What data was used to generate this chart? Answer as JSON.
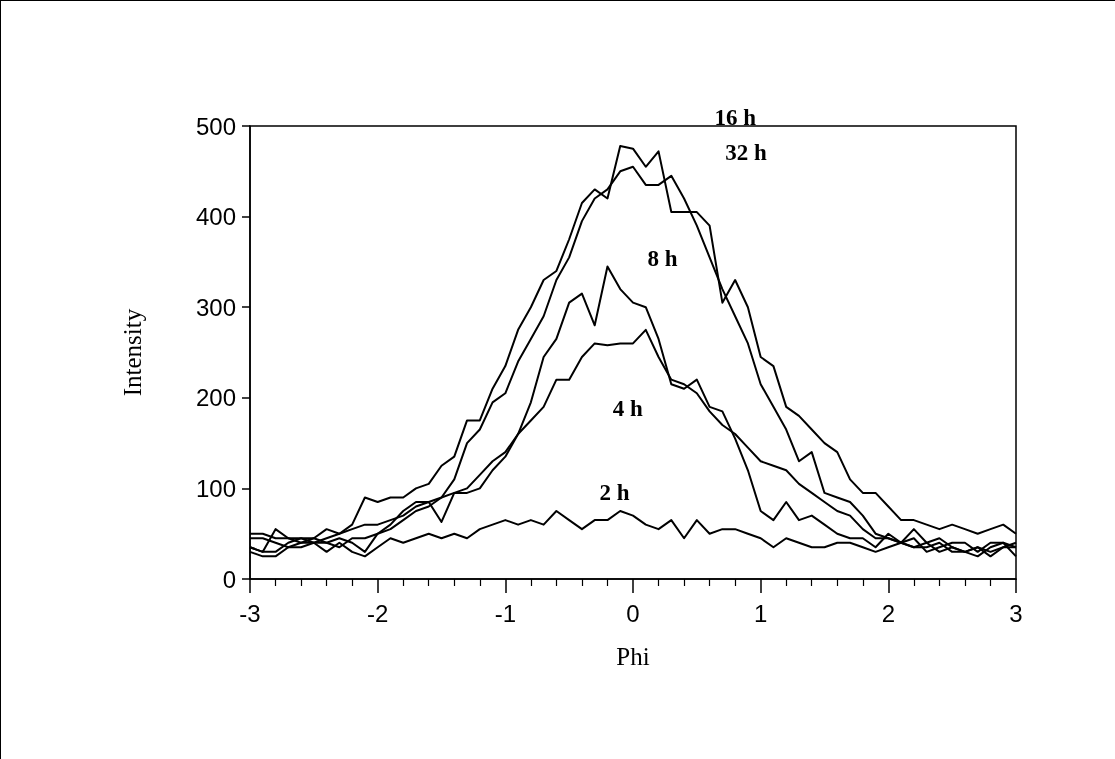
{
  "chart_data": {
    "type": "line",
    "xlabel": "Phi",
    "ylabel": "Intensity",
    "x": [
      -3,
      -2.9,
      -2.8,
      -2.7,
      -2.6,
      -2.5,
      -2.4,
      -2.3,
      -2.2,
      -2.1,
      -2,
      -1.9,
      -1.8,
      -1.7,
      -1.6,
      -1.5,
      -1.4,
      -1.3,
      -1.2,
      -1.1,
      -1,
      -0.9,
      -0.8,
      -0.7,
      -0.6,
      -0.5,
      -0.4,
      -0.3,
      -0.2,
      -0.1,
      0,
      0.1,
      0.2,
      0.3,
      0.4,
      0.5,
      0.6,
      0.7,
      0.8,
      0.9,
      1,
      1.1,
      1.2,
      1.3,
      1.4,
      1.5,
      1.6,
      1.7,
      1.8,
      1.9,
      2,
      2.1,
      2.2,
      2.3,
      2.4,
      2.5,
      2.6,
      2.7,
      2.8,
      2.9,
      3
    ],
    "series": [
      {
        "name": "16 h",
        "color": "#000000",
        "values": [
          30,
          25,
          25,
          35,
          35,
          40,
          45,
          50,
          60,
          90,
          85,
          90,
          90,
          100,
          105,
          125,
          135,
          175,
          175,
          210,
          235,
          275,
          300,
          330,
          340,
          375,
          415,
          430,
          420,
          478,
          475,
          455,
          472,
          405,
          405,
          405,
          390,
          305,
          330,
          300,
          245,
          235,
          190,
          180,
          165,
          150,
          140,
          110,
          95,
          95,
          80,
          65,
          65,
          60,
          55,
          60,
          55,
          50,
          55,
          60,
          50
        ]
      },
      {
        "name": "32 h",
        "color": "#000000",
        "values": [
          45,
          45,
          40,
          35,
          40,
          40,
          40,
          45,
          40,
          30,
          50,
          55,
          65,
          75,
          80,
          90,
          110,
          150,
          165,
          195,
          205,
          240,
          265,
          290,
          330,
          355,
          395,
          420,
          430,
          450,
          455,
          435,
          435,
          445,
          420,
          390,
          355,
          320,
          290,
          260,
          215,
          190,
          165,
          130,
          140,
          95,
          90,
          85,
          70,
          50,
          45,
          40,
          55,
          40,
          30,
          35,
          30,
          25,
          35,
          40,
          35
        ]
      },
      {
        "name": "8 h",
        "color": "#000000",
        "values": [
          35,
          30,
          55,
          45,
          40,
          45,
          55,
          50,
          55,
          60,
          60,
          65,
          70,
          80,
          85,
          63,
          95,
          95,
          100,
          120,
          135,
          160,
          195,
          245,
          265,
          305,
          315,
          280,
          345,
          320,
          305,
          300,
          265,
          215,
          210,
          220,
          190,
          185,
          155,
          120,
          75,
          65,
          85,
          65,
          70,
          60,
          50,
          45,
          45,
          35,
          50,
          40,
          45,
          30,
          35,
          40,
          40,
          30,
          40,
          40,
          25
        ]
      },
      {
        "name": "4 h",
        "color": "#000000",
        "values": [
          35,
          30,
          30,
          40,
          45,
          45,
          40,
          35,
          45,
          45,
          50,
          60,
          75,
          85,
          85,
          90,
          95,
          100,
          115,
          130,
          140,
          160,
          175,
          190,
          220,
          220,
          245,
          260,
          258,
          260,
          260,
          275,
          245,
          220,
          215,
          205,
          185,
          170,
          160,
          145,
          130,
          125,
          120,
          105,
          95,
          85,
          75,
          70,
          55,
          45,
          45,
          40,
          35,
          35,
          40,
          30,
          30,
          35,
          30,
          35,
          40
        ]
      },
      {
        "name": "2 h",
        "color": "#000000",
        "values": [
          50,
          50,
          45,
          45,
          45,
          40,
          30,
          40,
          30,
          25,
          35,
          45,
          40,
          45,
          50,
          45,
          50,
          45,
          55,
          60,
          65,
          60,
          65,
          60,
          75,
          65,
          55,
          65,
          65,
          75,
          70,
          60,
          55,
          65,
          45,
          65,
          50,
          55,
          55,
          50,
          45,
          35,
          45,
          40,
          35,
          35,
          40,
          40,
          35,
          30,
          35,
          40,
          35,
          40,
          45,
          35,
          30,
          35,
          25,
          35,
          35
        ]
      }
    ],
    "xlim": [
      -3,
      3
    ],
    "xticks": [
      -3,
      -2,
      -1,
      0,
      1,
      2,
      3
    ],
    "ylim": [
      0,
      500
    ],
    "yticks": [
      0,
      100,
      200,
      300,
      400,
      500
    ],
    "grid": false,
    "marker": "none",
    "line_style": "solid"
  }
}
